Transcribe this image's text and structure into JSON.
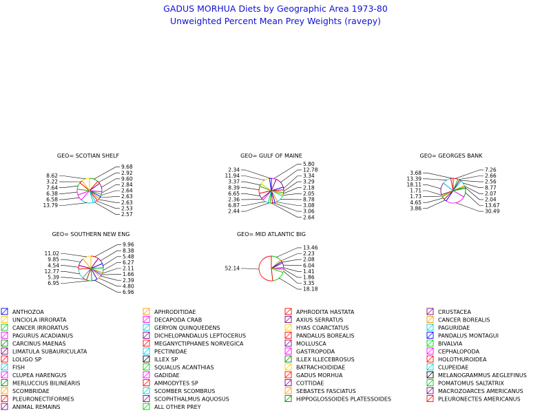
{
  "chart_data": [
    {
      "type": "pie",
      "panel": "GEO= SCOTIAN SHELF",
      "title_lines": [
        "GADUS MORHUA Diets by Geographic Area 1973-80",
        "Unweighted Percent Mean Prey Weights (ravepy)"
      ],
      "slices": [
        {
          "label": "9.68",
          "value": 9.68,
          "color": "#00aa00"
        },
        {
          "label": "2.92",
          "value": 2.92,
          "color": "#ff0000"
        },
        {
          "label": "9.60",
          "value": 9.6,
          "color": "#800080"
        },
        {
          "label": "2.84",
          "value": 2.84,
          "color": "#ff00ff"
        },
        {
          "label": "2.64",
          "value": 2.64,
          "color": "#00cc00"
        },
        {
          "label": "2.63",
          "value": 2.63,
          "color": "#0000ff"
        },
        {
          "label": "2.63",
          "value": 2.63,
          "color": "#ff9900"
        },
        {
          "label": "2.53",
          "value": 2.53,
          "color": "#ff0000"
        },
        {
          "label": "2.57",
          "value": 2.57,
          "color": "#00ccff"
        },
        {
          "label": "13.79",
          "value": 13.79,
          "color": "#00cccc"
        },
        {
          "label": "6.58",
          "value": 6.58,
          "color": "#ff00ff"
        },
        {
          "label": "6.38",
          "value": 6.38,
          "color": "#ff00ff"
        },
        {
          "label": "7.64",
          "value": 7.64,
          "color": "#00cc00"
        },
        {
          "label": "3.22",
          "value": 3.22,
          "color": "#ff0000"
        },
        {
          "label": "8.62",
          "value": 8.62,
          "color": "#ffcc00"
        }
      ]
    },
    {
      "type": "pie",
      "panel": "GEO= GULF OF MAINE",
      "slices": [
        {
          "label": "5.80",
          "value": 5.8,
          "color": "#ff00ff"
        },
        {
          "label": "12.78",
          "value": 12.78,
          "color": "#800080"
        },
        {
          "label": "3.34",
          "value": 3.34,
          "color": "#0000ff"
        },
        {
          "label": "3.29",
          "value": 3.29,
          "color": "#ff0000"
        },
        {
          "label": "2.18",
          "value": 2.18,
          "color": "#00cc00"
        },
        {
          "label": "2.05",
          "value": 2.05,
          "color": "#ffcc00"
        },
        {
          "label": "8.78",
          "value": 8.78,
          "color": "#00cccc"
        },
        {
          "label": "3.08",
          "value": 3.08,
          "color": "#ff9900"
        },
        {
          "label": "3.06",
          "value": 3.06,
          "color": "#0000ff"
        },
        {
          "label": "2.64",
          "value": 2.64,
          "color": "#ff0000"
        },
        {
          "label": "2.44",
          "value": 2.44,
          "color": "#00cc00"
        },
        {
          "label": "6.87",
          "value": 6.87,
          "color": "#00cccc"
        },
        {
          "label": "2.36",
          "value": 2.36,
          "color": "#ff00ff"
        },
        {
          "label": "6.65",
          "value": 6.65,
          "color": "#800080"
        },
        {
          "label": "8.39",
          "value": 8.39,
          "color": "#ff0000"
        },
        {
          "label": "3.37",
          "value": 3.37,
          "color": "#00cc00"
        },
        {
          "label": "11.94",
          "value": 11.94,
          "color": "#ffcc00"
        },
        {
          "label": "2.34",
          "value": 2.34,
          "color": "#0000ff"
        }
      ]
    },
    {
      "type": "pie",
      "panel": "GEO= GEORGES BANK",
      "slices": [
        {
          "label": "7.26",
          "value": 7.26,
          "color": "#ff0000"
        },
        {
          "label": "2.66",
          "value": 2.66,
          "color": "#00cc00"
        },
        {
          "label": "2.56",
          "value": 2.56,
          "color": "#800080"
        },
        {
          "label": "8.77",
          "value": 8.77,
          "color": "#00cccc"
        },
        {
          "label": "2.07",
          "value": 2.07,
          "color": "#ff9900"
        },
        {
          "label": "2.04",
          "value": 2.04,
          "color": "#00cc00"
        },
        {
          "label": "13.67",
          "value": 13.67,
          "color": "#008000"
        },
        {
          "label": "30.49",
          "value": 30.49,
          "color": "#ff00ff"
        },
        {
          "label": "3.86",
          "value": 3.86,
          "color": "#0000ff"
        },
        {
          "label": "4.65",
          "value": 4.65,
          "color": "#ff0000"
        },
        {
          "label": "1.73",
          "value": 1.73,
          "color": "#00cc00"
        },
        {
          "label": "1.71",
          "value": 1.71,
          "color": "#ffcc00"
        },
        {
          "label": "18.11",
          "value": 18.11,
          "color": "#800080"
        },
        {
          "label": "13.39",
          "value": 13.39,
          "color": "#00ccff"
        },
        {
          "label": "3.68",
          "value": 3.68,
          "color": "#ff0000"
        }
      ]
    },
    {
      "type": "pie",
      "panel": "GEO= SOUTHERN NEW ENG",
      "slices": [
        {
          "label": "9.96",
          "value": 9.96,
          "color": "#ff0000"
        },
        {
          "label": "8.38",
          "value": 8.38,
          "color": "#800080"
        },
        {
          "label": "5.48",
          "value": 5.48,
          "color": "#0000ff"
        },
        {
          "label": "6.27",
          "value": 6.27,
          "color": "#00cc00"
        },
        {
          "label": "2.11",
          "value": 2.11,
          "color": "#ff9900"
        },
        {
          "label": "1.66",
          "value": 1.66,
          "color": "#00cccc"
        },
        {
          "label": "2.39",
          "value": 2.39,
          "color": "#ff00ff"
        },
        {
          "label": "4.80",
          "value": 4.8,
          "color": "#ffcc00"
        },
        {
          "label": "6.96",
          "value": 6.96,
          "color": "#0000ff"
        },
        {
          "label": "6.95",
          "value": 6.95,
          "color": "#00cc00"
        },
        {
          "label": "5.39",
          "value": 5.39,
          "color": "#ff0000"
        },
        {
          "label": "12.77",
          "value": 12.77,
          "color": "#00cccc"
        },
        {
          "label": "4.54",
          "value": 4.54,
          "color": "#ff0000"
        },
        {
          "label": "9.85",
          "value": 9.85,
          "color": "#800080"
        },
        {
          "label": "11.02",
          "value": 11.02,
          "color": "#ffcc00"
        }
      ]
    },
    {
      "type": "pie",
      "panel": "GEO= MID ATLANTIC BIG",
      "slices": [
        {
          "label": "13.46",
          "value": 13.46,
          "color": "#00cc00"
        },
        {
          "label": "2.23",
          "value": 2.23,
          "color": "#ff9900"
        },
        {
          "label": "2.08",
          "value": 2.08,
          "color": "#0000ff"
        },
        {
          "label": "6.04",
          "value": 6.04,
          "color": "#800080"
        },
        {
          "label": "1.41",
          "value": 1.41,
          "color": "#00cccc"
        },
        {
          "label": "1.86",
          "value": 1.86,
          "color": "#ff00ff"
        },
        {
          "label": "3.35",
          "value": 3.35,
          "color": "#ffcc00"
        },
        {
          "label": "18.18",
          "value": 18.18,
          "color": "#00cc00"
        },
        {
          "label": "52.14",
          "value": 52.14,
          "color": "#ff0000"
        }
      ]
    }
  ],
  "legend": [
    {
      "label": "ANTHOZOA",
      "color": "#0000ff"
    },
    {
      "label": "UNCIOLA IRRORATA",
      "color": "#ffcc00"
    },
    {
      "label": "CANCER IRRORATUS",
      "color": "#00cc00"
    },
    {
      "label": "PAGURUS ACADIANUS",
      "color": "#ff00ff"
    },
    {
      "label": "CARCINUS MAENAS",
      "color": "#008000"
    },
    {
      "label": "LIMATULA SUBAURICULATA",
      "color": "#800080"
    },
    {
      "label": "LOLIGO SP",
      "color": "#ff0000"
    },
    {
      "label": "FISH",
      "color": "#00cccc"
    },
    {
      "label": "CLUPEA HARENGUS",
      "color": "#ff00ff"
    },
    {
      "label": "MERLUCCIUS BILINEARIS",
      "color": "#008000"
    },
    {
      "label": "SCOMBRIDAE",
      "color": "#ff9900"
    },
    {
      "label": "PLEURONECTIFORMES",
      "color": "#ff0000"
    },
    {
      "label": "ANIMAL REMAINS",
      "color": "#800080"
    },
    {
      "label": "APHRODITIDAE",
      "color": "#ff9900"
    },
    {
      "label": "DECAPODA CRAB",
      "color": "#ff00ff"
    },
    {
      "label": "GERYON QUINQUEDENS",
      "color": "#00cccc"
    },
    {
      "label": "DICHELOPANDALUS LEPTOCERUS",
      "color": "#800080"
    },
    {
      "label": "MEGANYCTIPHANES NORVEGICA",
      "color": "#ff0000"
    },
    {
      "label": "PECTINIDAE",
      "color": "#00ccff"
    },
    {
      "label": "ILLEX SP",
      "color": "#000000"
    },
    {
      "label": "SQUALUS ACANTHIAS",
      "color": "#00cc00"
    },
    {
      "label": "GADIDAE",
      "color": "#ff00ff"
    },
    {
      "label": "AMMODYTES SP",
      "color": "#ff0000"
    },
    {
      "label": "SCOMBER SCOMBRUS",
      "color": "#00cccc"
    },
    {
      "label": "SCOPHTHALMUS AQUOSUS",
      "color": "#800080"
    },
    {
      "label": "ALL OTHER PREY",
      "color": "#00cc00"
    },
    {
      "label": "APHRODITA HASTATA",
      "color": "#ff0000"
    },
    {
      "label": "AXIUS SERRATUS",
      "color": "#800080"
    },
    {
      "label": "HYAS COARCTATUS",
      "color": "#ffcc00"
    },
    {
      "label": "PANDALUS BOREALIS",
      "color": "#ff0000"
    },
    {
      "label": "MOLLUSCA",
      "color": "#800080"
    },
    {
      "label": "GASTROPODA",
      "color": "#ff00ff"
    },
    {
      "label": "ILLEX ILLECEBROSUS",
      "color": "#008000"
    },
    {
      "label": "BATRACHOIDIDAE",
      "color": "#ffcc00"
    },
    {
      "label": "GADUS MORHUA",
      "color": "#ff0000"
    },
    {
      "label": "COTTIDAE",
      "color": "#800080"
    },
    {
      "label": "SEBASTES FASCIATUS",
      "color": "#ff9900"
    },
    {
      "label": "HIPPOGLOSSOIDES PLATESSOIDES",
      "color": "#008000"
    },
    {
      "label": "CRUSTACEA",
      "color": "#800080"
    },
    {
      "label": "CANCER BOREALIS",
      "color": "#ff9900"
    },
    {
      "label": "PAGURIDAE",
      "color": "#00cccc"
    },
    {
      "label": "PANDALUS MONTAGUI",
      "color": "#0000ff"
    },
    {
      "label": "BIVALVIA",
      "color": "#00cc00"
    },
    {
      "label": "CEPHALOPODA",
      "color": "#ff00ff"
    },
    {
      "label": "HOLOTHUROIDEA",
      "color": "#ff0000"
    },
    {
      "label": "CLUPEIDAE",
      "color": "#00cccc"
    },
    {
      "label": "MELANOGRAMMUS AEGLEFINUS",
      "color": "#000000"
    },
    {
      "label": "POMATOMUS SALTATRIX",
      "color": "#00cc00"
    },
    {
      "label": "MACROZOARCES AMERICANUS",
      "color": "#800080"
    },
    {
      "label": "PLEURONECTES AMERICANUS",
      "color": "#ff0000"
    }
  ]
}
